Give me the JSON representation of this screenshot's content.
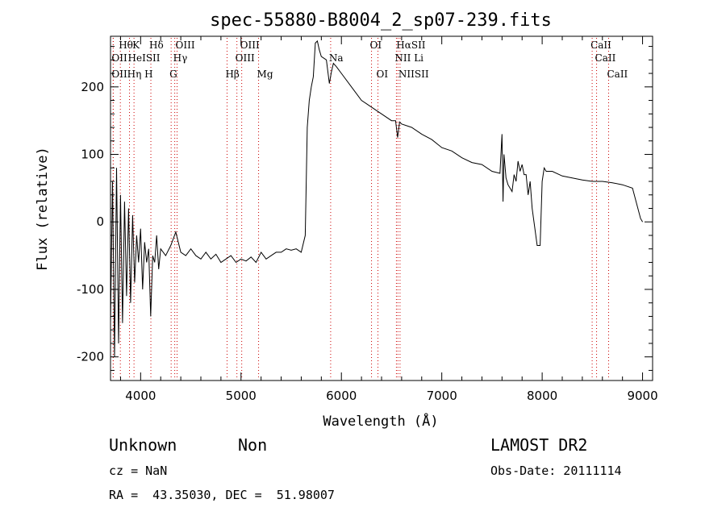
{
  "chart_data": {
    "type": "line",
    "title": "spec-55880-B8004_2_sp07-239.fits",
    "xlabel": "Wavelength (Å)",
    "ylabel": "Flux (relative)",
    "xlim": [
      3700,
      9100
    ],
    "ylim": [
      -235,
      275
    ],
    "xticks": [
      4000,
      5000,
      6000,
      7000,
      8000,
      9000
    ],
    "yticks": [
      -200,
      -100,
      0,
      100,
      200
    ],
    "grid": false,
    "series": [
      {
        "color": "#000000",
        "x": [
          3700,
          3720,
          3740,
          3760,
          3780,
          3800,
          3820,
          3840,
          3860,
          3880,
          3900,
          3920,
          3940,
          3960,
          3980,
          4000,
          4020,
          4040,
          4060,
          4080,
          4100,
          4120,
          4140,
          4160,
          4180,
          4200,
          4250,
          4300,
          4350,
          4400,
          4450,
          4500,
          4550,
          4600,
          4650,
          4700,
          4750,
          4800,
          4850,
          4900,
          4950,
          5000,
          5050,
          5100,
          5150,
          5200,
          5250,
          5300,
          5350,
          5400,
          5450,
          5500,
          5550,
          5600,
          5640,
          5660,
          5680,
          5700,
          5720,
          5740,
          5760,
          5780,
          5800,
          5850,
          5880,
          5900,
          5920,
          5950,
          6000,
          6100,
          6200,
          6300,
          6400,
          6500,
          6540,
          6560,
          6580,
          6600,
          6700,
          6800,
          6900,
          7000,
          7100,
          7200,
          7300,
          7400,
          7500,
          7580,
          7600,
          7610,
          7620,
          7640,
          7660,
          7680,
          7700,
          7720,
          7740,
          7760,
          7780,
          7800,
          7820,
          7840,
          7860,
          7880,
          7900,
          7950,
          7980,
          8000,
          8020,
          8040,
          8100,
          8200,
          8300,
          8400,
          8500,
          8600,
          8700,
          8800,
          8900,
          8980,
          9000
        ],
        "y": [
          -150,
          60,
          -200,
          80,
          -180,
          40,
          -150,
          30,
          -110,
          20,
          -120,
          10,
          -90,
          -20,
          -60,
          -10,
          -100,
          -30,
          -60,
          -40,
          -140,
          -50,
          -60,
          -20,
          -70,
          -40,
          -50,
          -35,
          -15,
          -45,
          -50,
          -40,
          -50,
          -55,
          -45,
          -55,
          -48,
          -60,
          -55,
          -50,
          -60,
          -55,
          -58,
          -52,
          -60,
          -45,
          -55,
          -50,
          -45,
          -45,
          -40,
          -42,
          -40,
          -45,
          -20,
          140,
          180,
          200,
          215,
          265,
          268,
          255,
          245,
          240,
          205,
          222,
          235,
          230,
          220,
          200,
          180,
          170,
          160,
          150,
          150,
          125,
          148,
          145,
          140,
          130,
          122,
          110,
          105,
          95,
          88,
          85,
          75,
          72,
          130,
          30,
          100,
          65,
          55,
          50,
          45,
          70,
          60,
          90,
          75,
          85,
          70,
          70,
          40,
          60,
          20,
          -35,
          -35,
          60,
          80,
          75,
          75,
          68,
          65,
          62,
          60,
          60,
          58,
          55,
          50,
          5,
          0
        ]
      }
    ],
    "spectral_lines": [
      {
        "label": "Hθ",
        "x": 3798,
        "row": 0
      },
      {
        "label": "K",
        "x": 3934,
        "row": 0
      },
      {
        "label": "Hδ",
        "x": 4102,
        "row": 0
      },
      {
        "label": "OIII",
        "x": 4363,
        "row": 0
      },
      {
        "label": "OIII",
        "x": 5007,
        "row": 0
      },
      {
        "label": "OI",
        "x": 6300,
        "row": 0
      },
      {
        "label": "HαSII",
        "x": 6563,
        "row": 0
      },
      {
        "label": "CaII",
        "x": 8498,
        "row": 0
      },
      {
        "label": "OII",
        "x": 3727,
        "row": 1
      },
      {
        "label": "HeISII",
        "x": 3889,
        "row": 1
      },
      {
        "label": "Hγ",
        "x": 4340,
        "row": 1
      },
      {
        "label": "OIII",
        "x": 4959,
        "row": 1
      },
      {
        "label": "Na",
        "x": 5893,
        "row": 1
      },
      {
        "label": "NII Li",
        "x": 6548,
        "row": 1
      },
      {
        "label": "CaII",
        "x": 8542,
        "row": 1
      },
      {
        "label": "OIIHη H",
        "x": 3727,
        "row": 2
      },
      {
        "label": "G",
        "x": 4304,
        "row": 2
      },
      {
        "label": "Hβ",
        "x": 4861,
        "row": 2
      },
      {
        "label": "Mg",
        "x": 5175,
        "row": 2
      },
      {
        "label": "OI",
        "x": 6364,
        "row": 2
      },
      {
        "label": "NIISII",
        "x": 6584,
        "row": 2
      },
      {
        "label": "CaII",
        "x": 8662,
        "row": 2
      }
    ],
    "line_marker_color": "#cc0000"
  },
  "info": {
    "class": "Unknown",
    "subclass": "Non",
    "survey": "LAMOST DR2",
    "cz": "cz = NaN",
    "obs_date": "Obs-Date: 20111114",
    "radec": "RA =  43.35030, DEC =  51.98007"
  }
}
